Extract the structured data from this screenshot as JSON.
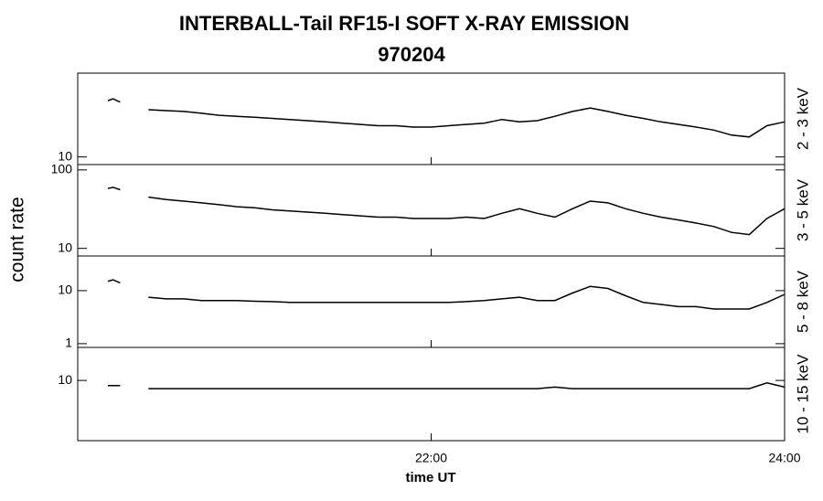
{
  "chart_data": [
    {
      "type": "line",
      "title": "INTERBALL-Tail RF15-I SOFT X-RAY EMISSION",
      "subtitle": "970204",
      "ylabel": "count rate",
      "panel_label": "2 - 3 keV",
      "log_y": true,
      "color": "#000000",
      "xlim": [
        20,
        24
      ],
      "ylim": [
        8,
        117
      ],
      "yticks": [
        10
      ],
      "x": [
        20.17,
        20.2,
        20.24,
        20.3,
        20.4,
        20.5,
        20.6,
        20.7,
        20.8,
        20.9,
        21.0,
        21.1,
        21.2,
        21.3,
        21.4,
        21.5,
        21.6,
        21.7,
        21.8,
        21.9,
        22.0,
        22.1,
        22.2,
        22.3,
        22.4,
        22.5,
        22.6,
        22.7,
        22.8,
        22.9,
        23.0,
        23.1,
        23.2,
        23.3,
        23.4,
        23.5,
        23.6,
        23.7,
        23.8,
        23.9,
        24.0
      ],
      "values": [
        52,
        55,
        50,
        null,
        40,
        39,
        38,
        36,
        34,
        33,
        32,
        31,
        30,
        29,
        28,
        27,
        26,
        25,
        25,
        24,
        24,
        25,
        26,
        27,
        30,
        28,
        29,
        33,
        38,
        42,
        38,
        34,
        31,
        28,
        26,
        24,
        22,
        19,
        18,
        25,
        28
      ]
    },
    {
      "type": "line",
      "panel_label": "3 - 5 keV",
      "log_y": true,
      "color": "#000000",
      "xlim": [
        20,
        24
      ],
      "ylim": [
        8,
        117
      ],
      "yticks": [
        10,
        100
      ],
      "x": [
        20.17,
        20.2,
        20.24,
        20.3,
        20.4,
        20.5,
        20.6,
        20.7,
        20.8,
        20.9,
        21.0,
        21.1,
        21.2,
        21.3,
        21.4,
        21.5,
        21.6,
        21.7,
        21.8,
        21.9,
        22.0,
        22.1,
        22.2,
        22.3,
        22.4,
        22.5,
        22.6,
        22.7,
        22.8,
        22.9,
        23.0,
        23.1,
        23.2,
        23.3,
        23.4,
        23.5,
        23.6,
        23.7,
        23.8,
        23.9,
        24.0
      ],
      "values": [
        58,
        60,
        56,
        null,
        45,
        42,
        40,
        38,
        36,
        34,
        33,
        31,
        30,
        29,
        28,
        27,
        26,
        25,
        25,
        24,
        24,
        24,
        25,
        24,
        28,
        32,
        28,
        25,
        32,
        40,
        38,
        32,
        28,
        25,
        23,
        21,
        19,
        16,
        15,
        24,
        32
      ]
    },
    {
      "type": "line",
      "panel_label": "5 - 8 keV",
      "log_y": true,
      "color": "#000000",
      "xlim": [
        20,
        24
      ],
      "ylim": [
        0.85,
        45
      ],
      "yticks": [
        1,
        10
      ],
      "x": [
        20.17,
        20.2,
        20.24,
        20.3,
        20.4,
        20.5,
        20.6,
        20.7,
        20.8,
        20.9,
        21.0,
        21.1,
        21.2,
        21.3,
        21.4,
        21.5,
        21.6,
        21.7,
        21.8,
        21.9,
        22.0,
        22.1,
        22.2,
        22.3,
        22.4,
        22.5,
        22.6,
        22.7,
        22.8,
        22.9,
        23.0,
        23.1,
        23.2,
        23.3,
        23.4,
        23.5,
        23.6,
        23.7,
        23.8,
        23.9,
        24.0
      ],
      "values": [
        15,
        16,
        14,
        null,
        7.5,
        7,
        7,
        6.5,
        6.5,
        6.5,
        6.3,
        6.2,
        6,
        6,
        6,
        6,
        6,
        6,
        6,
        6,
        6,
        6,
        6.2,
        6.5,
        7,
        7.5,
        6.5,
        6.5,
        9,
        12,
        11,
        8,
        6,
        5.5,
        5,
        5,
        4.5,
        4.5,
        4.5,
        6,
        8.5
      ]
    },
    {
      "type": "line",
      "panel_label": "10 - 15 keV",
      "log_y": true,
      "color": "#000000",
      "xlabel": "time UT",
      "xlim": [
        20,
        24
      ],
      "ylim": [
        0.73,
        42
      ],
      "yticks": [
        10
      ],
      "xticks": [
        {
          "value": 22,
          "label": "22:00"
        },
        {
          "value": 24,
          "label": "24:00"
        }
      ],
      "x": [
        20.17,
        20.2,
        20.24,
        20.3,
        20.4,
        20.5,
        20.6,
        20.7,
        20.8,
        20.9,
        21.0,
        21.1,
        21.2,
        21.3,
        21.4,
        21.5,
        21.6,
        21.7,
        21.8,
        21.9,
        22.0,
        22.1,
        22.2,
        22.3,
        22.4,
        22.5,
        22.6,
        22.7,
        22.8,
        22.9,
        23.0,
        23.1,
        23.2,
        23.3,
        23.4,
        23.5,
        23.6,
        23.7,
        23.8,
        23.9,
        24.0
      ],
      "values": [
        8,
        8,
        8,
        null,
        7,
        7,
        7,
        7,
        7,
        7,
        7,
        7,
        7,
        7,
        7,
        7,
        7,
        7,
        7,
        7,
        7,
        7,
        7,
        7,
        7,
        7,
        7,
        7.5,
        7,
        7,
        7,
        7,
        7,
        7,
        7,
        7,
        7,
        7,
        7,
        9,
        7.5
      ]
    }
  ]
}
